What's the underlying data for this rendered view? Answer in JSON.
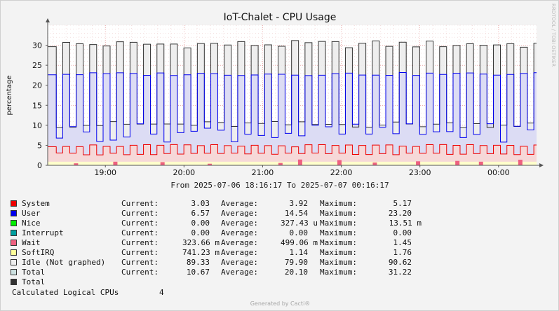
{
  "chart_data": {
    "type": "area",
    "title": "IoT-Chalet - CPU Usage",
    "ylabel": "percentage",
    "ylim": [
      0,
      35
    ],
    "yticks": [
      0,
      5,
      10,
      15,
      20,
      25,
      30
    ],
    "xticks": [
      "19:00",
      "20:00",
      "21:00",
      "22:00",
      "23:00",
      "00:00"
    ],
    "x_range": [
      "18:16",
      "00:29"
    ],
    "subtitle": "From 2025-07-06 18:16:17 To 2025-07-07 00:16:17",
    "watermark": "RRDTOOL / TOBI OETIKER",
    "grid": true,
    "pattern": {
      "period_minutes": 10.27,
      "user_high_range": [
        22.4,
        23.2
      ],
      "user_low_range": [
        5.8,
        10.5
      ],
      "system_high_range": [
        4.6,
        5.2
      ],
      "system_low_range": [
        2.6,
        3.1
      ],
      "total_high_range": [
        29.3,
        31.2
      ],
      "total_low_range": [
        9.4,
        11.0
      ]
    },
    "series": [
      {
        "name": "System",
        "color": "#ee0000",
        "current": "3.03",
        "average": "3.92",
        "maximum": "5.17"
      },
      {
        "name": "User",
        "color": "#0000ee",
        "current": "6.57",
        "average": "14.54",
        "maximum": "23.20"
      },
      {
        "name": "Nice",
        "color": "#00ee00",
        "current": "0.00",
        "average": "327.43 u",
        "maximum": "13.51 m"
      },
      {
        "name": "Interrupt",
        "color": "#00a0a0",
        "current": "0.00",
        "average": "0.00",
        "maximum": "0.00"
      },
      {
        "name": "Wait",
        "color": "#ee6080",
        "current": "323.66 m",
        "average": "499.06 m",
        "maximum": "1.45"
      },
      {
        "name": "SoftIRQ",
        "color": "#ffff99",
        "current": "741.23 m",
        "average": "1.14",
        "maximum": "1.76"
      },
      {
        "name": "Idle (Not graphed)",
        "color": "#eeeeee",
        "current": "89.33",
        "average": "79.90",
        "maximum": "90.62"
      },
      {
        "name": "Total",
        "color": "#cce0e0",
        "current": "10.67",
        "average": "20.10",
        "maximum": "31.22"
      },
      {
        "name": "Total",
        "color": "#333333",
        "current": "",
        "average": "",
        "maximum": ""
      }
    ]
  },
  "legend_labels": {
    "current": "Current:",
    "average": "Average:",
    "maximum": "Maximum:"
  },
  "calculated": {
    "label": "Calculated Logical CPUs",
    "value": "4"
  },
  "footer": "Generated by Cacti®"
}
